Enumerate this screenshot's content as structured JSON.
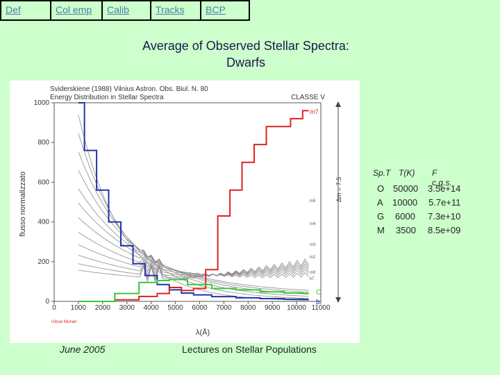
{
  "nav": {
    "items": [
      {
        "label": "Def"
      },
      {
        "label": "Col emp"
      },
      {
        "label": "Calib"
      },
      {
        "label": "Tracks"
      },
      {
        "label": "BCP"
      }
    ]
  },
  "slide": {
    "title_line1": "Average of Observed Stellar Spectra:",
    "title_line2": "Dwarfs",
    "footer_left": "June 2005",
    "footer_center": "Lectures on Stellar Populations"
  },
  "figure": {
    "header_line1": "Sviderskiene (1988) Vilnius Astron. Obs. Biul. N. 80",
    "header_line2": "Energy Distribution in Stellar Spectra",
    "classe": "CLASSE V",
    "ylabel": "flusso normalizzato",
    "xlabel": "λ(Å)",
    "right_label": "Δm = 7.5",
    "credit": "Ulisse Munari",
    "m7_label": "m7",
    "o_label": "O",
    "b_label": "b",
    "curve_labels": [
      "m5",
      "m4",
      "m3",
      "m2",
      "m0",
      "k7"
    ],
    "colors": {
      "blue": "#2233aa",
      "red": "#dd2222",
      "green": "#33cc33",
      "grey": "#8a8a8a"
    }
  },
  "table": {
    "headers": [
      "Sp.T",
      "T(K)",
      "F c.g.s."
    ],
    "rows": [
      [
        "O",
        "50000",
        "3.5e+14"
      ],
      [
        "A",
        "10000",
        "5.7e+11"
      ],
      [
        "G",
        "6000",
        "7.3e+10"
      ],
      [
        "M",
        "3500",
        "8.5e+09"
      ]
    ]
  },
  "chart_data": {
    "type": "line",
    "title": "Energy Distribution in Stellar Spectra",
    "xlabel": "λ(Å)",
    "ylabel": "flusso normalizzato",
    "xlim": [
      0,
      11000
    ],
    "ylim": [
      0,
      1000
    ],
    "x_ticks": [
      0,
      1000,
      2000,
      3000,
      4000,
      5000,
      6000,
      7000,
      8000,
      9000,
      10000,
      11000
    ],
    "y_ticks": [
      0,
      200,
      400,
      600,
      800,
      1000
    ],
    "series": [
      {
        "name": "O",
        "color": "blue",
        "x": [
          1000,
          1500,
          2000,
          2500,
          3000,
          3500,
          4000,
          4500,
          5000,
          5500,
          6000,
          7000,
          8000,
          9000,
          10000,
          10500
        ],
        "y": [
          1000,
          760,
          560,
          400,
          280,
          190,
          130,
          85,
          58,
          42,
          33,
          24,
          18,
          14,
          11,
          10
        ]
      },
      {
        "name": "m7",
        "color": "red",
        "x": [
          1000,
          2000,
          3000,
          4000,
          4500,
          5000,
          5500,
          6000,
          6500,
          7000,
          7500,
          8000,
          8500,
          9000,
          9500,
          10000,
          10500
        ],
        "y": [
          0,
          0,
          8,
          25,
          40,
          70,
          55,
          65,
          160,
          430,
          560,
          700,
          790,
          880,
          880,
          920,
          960
        ]
      },
      {
        "name": "G",
        "color": "green",
        "x": [
          1000,
          2000,
          3000,
          4000,
          4500,
          5000,
          6000,
          7000,
          8000,
          9000,
          10000,
          10500
        ],
        "y": [
          0,
          0,
          40,
          95,
          105,
          110,
          85,
          65,
          58,
          48,
          42,
          40
        ]
      }
    ]
  }
}
